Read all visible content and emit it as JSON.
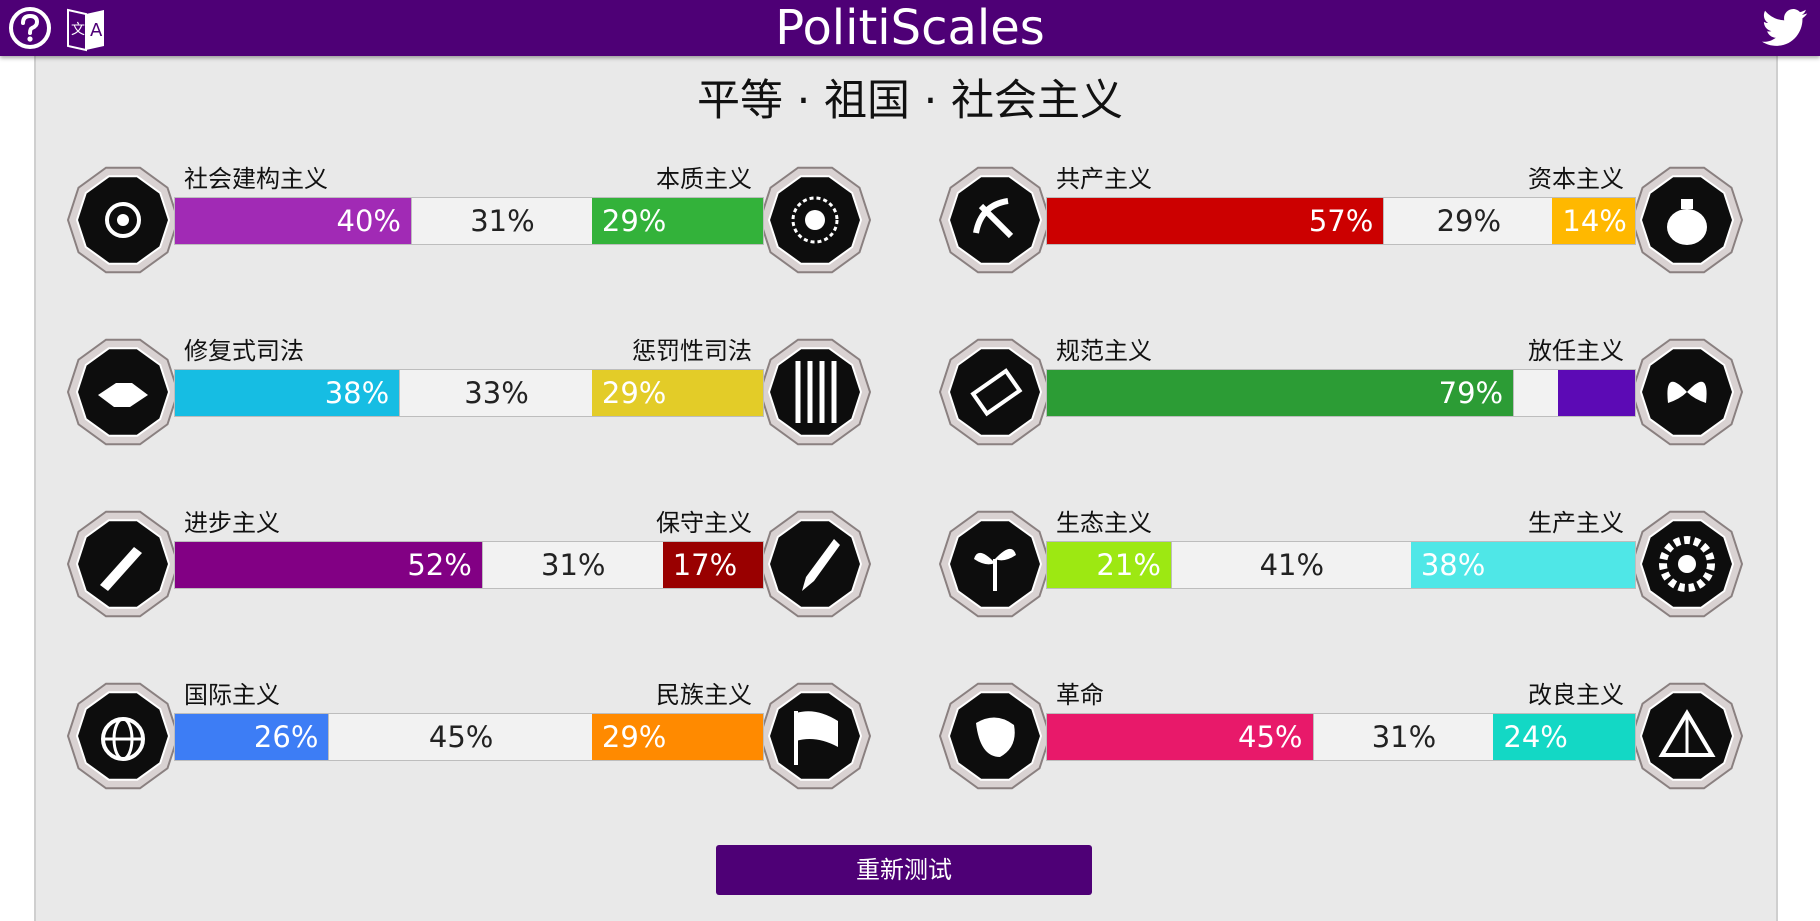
{
  "header": {
    "title": "PolitiScales",
    "help_icon": "help-icon",
    "language_icon": "translate-icon",
    "twitter_icon": "twitter-icon",
    "bar_color": "#4e0076"
  },
  "result": {
    "title": "平等 · 祖国 · 社会主义"
  },
  "axes": [
    {
      "left_label": "社会建构主义",
      "right_label": "本质主义",
      "left_pct": "40%",
      "mid_pct": "31%",
      "right_pct": "29%",
      "left_value": 40,
      "mid_value": 31,
      "right_value": 29,
      "left_color": "#a12ab5",
      "right_color": "#33b23a",
      "left_icon": "eye-icon",
      "right_icon": "flower-icon"
    },
    {
      "left_label": "共产主义",
      "right_label": "资本主义",
      "left_pct": "57%",
      "mid_pct": "29%",
      "right_pct": "14%",
      "left_value": 57,
      "mid_value": 29,
      "right_value": 14,
      "left_color": "#cc0000",
      "right_color": "#ffb800",
      "left_icon": "hammer-sickle-icon",
      "right_icon": "money-bag-icon"
    },
    {
      "left_label": "修复式司法",
      "right_label": "惩罚性司法",
      "left_pct": "38%",
      "mid_pct": "33%",
      "right_pct": "29%",
      "left_value": 38,
      "mid_value": 33,
      "right_value": 29,
      "left_color": "#16bde3",
      "right_color": "#e3cc28",
      "left_icon": "handshake-icon",
      "right_icon": "prison-bars-icon"
    },
    {
      "left_label": "规范主义",
      "right_label": "放任主义",
      "left_pct": "79%",
      "mid_pct": "",
      "right_pct": "",
      "left_value": 79,
      "mid_value": 8,
      "right_value": 13,
      "left_color": "#2c9c35",
      "right_color": "#5c0ab5",
      "left_icon": "ruler-icon",
      "right_icon": "butterfly-icon"
    },
    {
      "left_label": "进步主义",
      "right_label": "保守主义",
      "left_pct": "52%",
      "mid_pct": "31%",
      "right_pct": "17%",
      "left_value": 52,
      "mid_value": 31,
      "right_value": 17,
      "left_color": "#820084",
      "right_color": "#990000",
      "left_icon": "rocket-icon",
      "right_icon": "quill-icon"
    },
    {
      "left_label": "生态主义",
      "right_label": "生产主义",
      "left_pct": "21%",
      "mid_pct": "41%",
      "right_pct": "38%",
      "left_value": 21,
      "mid_value": 41,
      "right_value": 38,
      "left_color": "#9de812",
      "right_color": "#4fe7e7",
      "left_icon": "sprout-icon",
      "right_icon": "gear-icon"
    },
    {
      "left_label": "国际主义",
      "right_label": "民族主义",
      "left_pct": "26%",
      "mid_pct": "45%",
      "right_pct": "29%",
      "left_value": 26,
      "mid_value": 45,
      "right_value": 29,
      "left_color": "#3d7df5",
      "right_color": "#ff8a00",
      "left_icon": "globe-icon",
      "right_icon": "flag-icon"
    },
    {
      "left_label": "革命",
      "right_label": "改良主义",
      "left_pct": "45%",
      "mid_pct": "31%",
      "right_pct": "24%",
      "left_value": 45,
      "mid_value": 31,
      "right_value": 24,
      "left_color": "#e8196a",
      "right_color": "#13d8c5",
      "left_icon": "fist-icon",
      "right_icon": "circus-tent-icon"
    }
  ],
  "retry_button": "重新测试"
}
